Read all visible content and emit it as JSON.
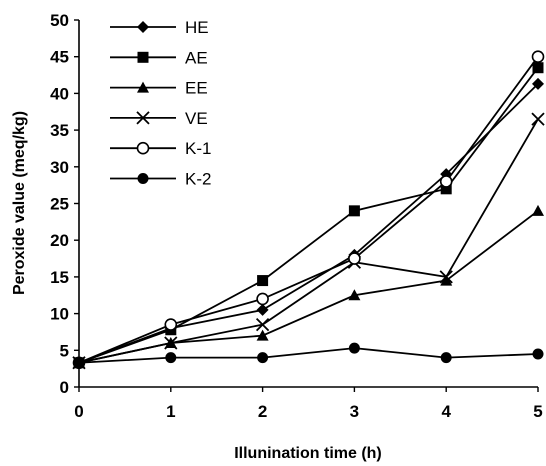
{
  "chart_data": {
    "type": "line",
    "title": "",
    "xlabel": "Illunination time (h)",
    "ylabel": "Peroxide value (meq/kg)",
    "x": [
      0,
      1,
      2,
      3,
      4,
      5
    ],
    "xlim": [
      0,
      5
    ],
    "ylim": [
      0,
      50
    ],
    "xticks": [
      0,
      1,
      2,
      3,
      4,
      5
    ],
    "yticks": [
      0,
      5,
      10,
      15,
      20,
      25,
      30,
      35,
      40,
      45,
      50
    ],
    "grid": false,
    "legend_position": "top-left",
    "series": [
      {
        "name": "HE",
        "marker": "filled-diamond",
        "values": [
          3.3,
          8.0,
          10.5,
          18.0,
          29.0,
          41.3
        ]
      },
      {
        "name": "AE",
        "marker": "filled-square",
        "values": [
          3.3,
          7.8,
          14.5,
          24.0,
          27.0,
          43.5
        ]
      },
      {
        "name": "EE",
        "marker": "filled-triangle",
        "values": [
          3.3,
          6.0,
          7.0,
          12.5,
          14.5,
          24.0
        ]
      },
      {
        "name": "VE",
        "marker": "cross",
        "values": [
          3.3,
          6.0,
          8.5,
          17.0,
          15.0,
          36.5
        ]
      },
      {
        "name": "K-1",
        "marker": "open-circle",
        "values": [
          3.3,
          8.5,
          12.0,
          17.5,
          28.0,
          45.0
        ]
      },
      {
        "name": "K-2",
        "marker": "filled-circle",
        "values": [
          3.3,
          4.0,
          4.0,
          5.3,
          4.0,
          4.5
        ]
      }
    ],
    "colors": {
      "line": "#000000",
      "marker": "#000000",
      "background": "#ffffff"
    }
  }
}
